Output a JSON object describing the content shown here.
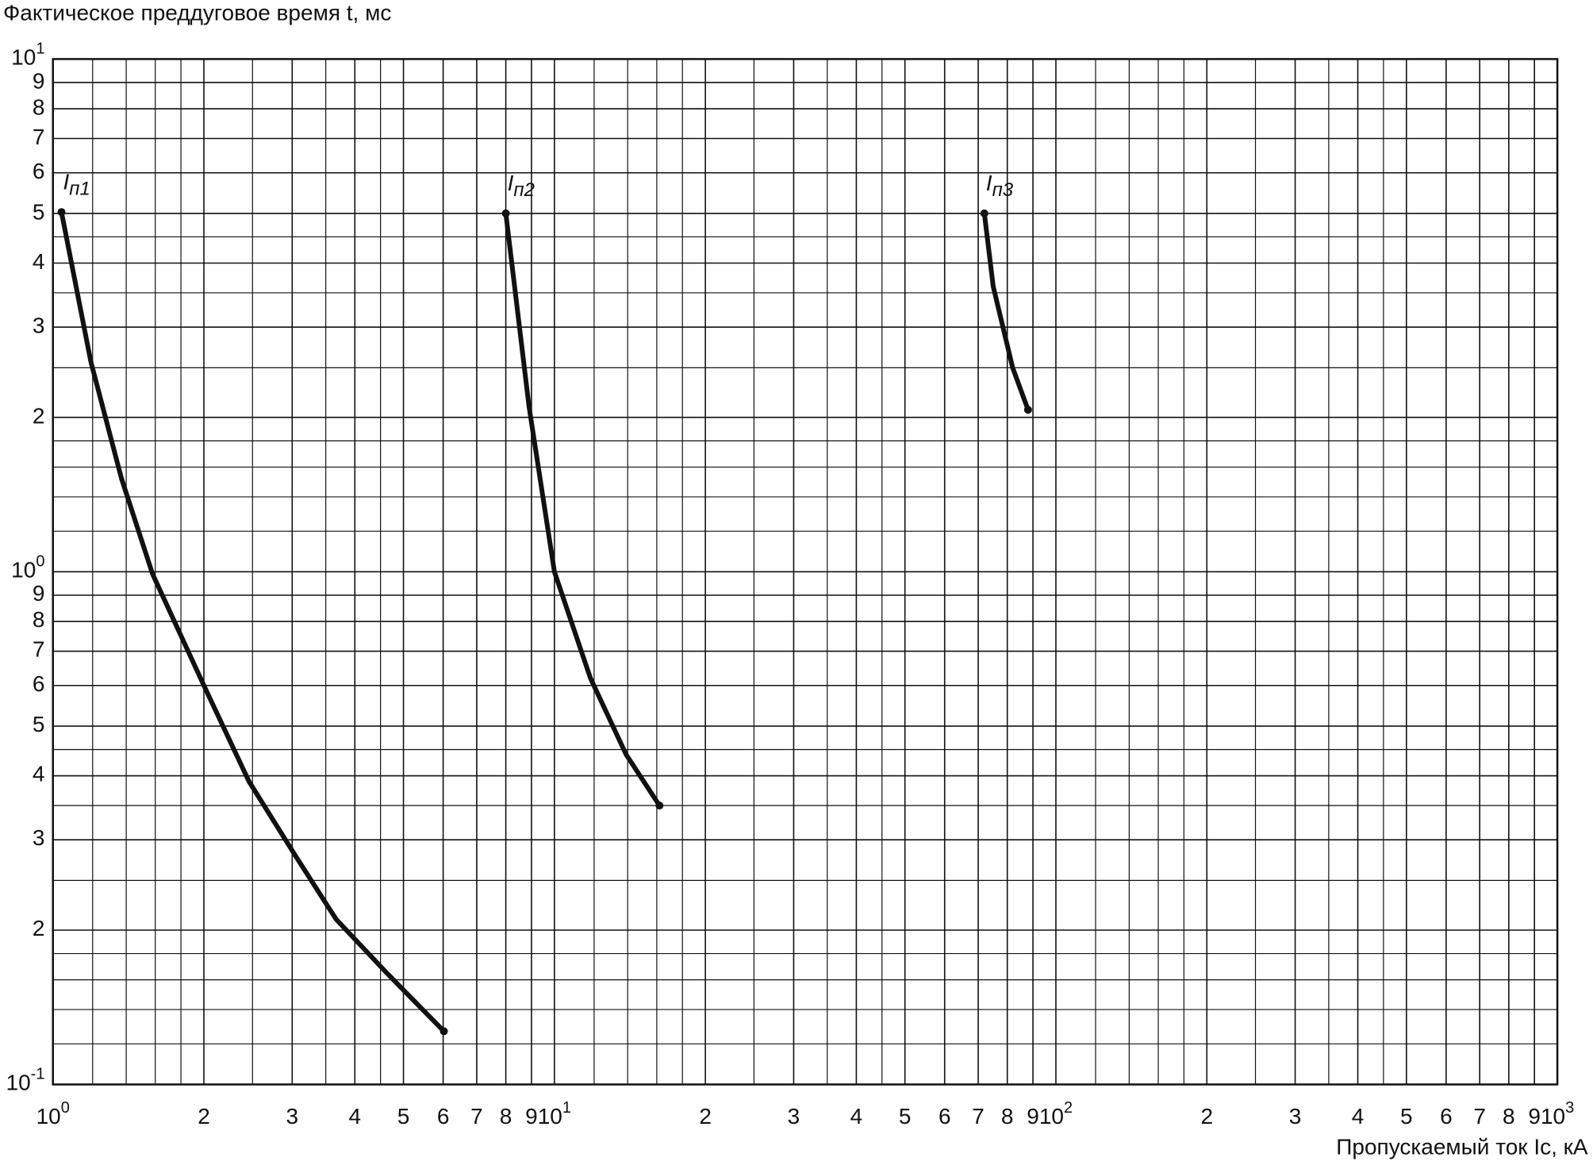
{
  "chart_data": {
    "type": "line",
    "y_label": "Фактическое преддуговое время t, мс",
    "x_label": "Пропускаемый ток Iс, кА",
    "log_x": true,
    "log_y": true,
    "grid": true,
    "xlim": [
      1,
      1000
    ],
    "ylim": [
      0.1,
      10
    ],
    "xticks": [
      {
        "value": 1,
        "label": "10",
        "sup": "0"
      },
      2,
      3,
      4,
      5,
      6,
      7,
      8,
      9,
      {
        "value": 10,
        "label": "10",
        "sup": "1"
      },
      {
        "value": 20,
        "label": "2"
      },
      {
        "value": 30,
        "label": "3"
      },
      {
        "value": 40,
        "label": "4"
      },
      {
        "value": 50,
        "label": "5"
      },
      {
        "value": 60,
        "label": "6"
      },
      {
        "value": 70,
        "label": "7"
      },
      {
        "value": 80,
        "label": "8"
      },
      {
        "value": 90,
        "label": "9"
      },
      {
        "value": 100,
        "label": "10",
        "sup": "2"
      },
      {
        "value": 200,
        "label": "2"
      },
      {
        "value": 300,
        "label": "3"
      },
      {
        "value": 400,
        "label": "4"
      },
      {
        "value": 500,
        "label": "5"
      },
      {
        "value": 600,
        "label": "6"
      },
      {
        "value": 700,
        "label": "7"
      },
      {
        "value": 800,
        "label": "8"
      },
      {
        "value": 900,
        "label": "9"
      },
      {
        "value": 1000,
        "label": "10",
        "sup": "3"
      }
    ],
    "yticks": [
      {
        "value": 0.1,
        "label": "10",
        "sup": "-1"
      },
      {
        "value": 0.2,
        "label": "2"
      },
      {
        "value": 0.3,
        "label": "3"
      },
      {
        "value": 0.4,
        "label": "4"
      },
      {
        "value": 0.5,
        "label": "5"
      },
      {
        "value": 0.6,
        "label": "6"
      },
      {
        "value": 0.7,
        "label": "7"
      },
      {
        "value": 0.8,
        "label": "8"
      },
      {
        "value": 0.9,
        "label": "9"
      },
      {
        "value": 1,
        "label": "10",
        "sup": "0"
      },
      2,
      3,
      4,
      5,
      6,
      7,
      8,
      9,
      {
        "value": 10,
        "label": "10",
        "sup": "1"
      }
    ],
    "minor_xticks": [
      1.2,
      1.4,
      1.6,
      1.8,
      2.5,
      3.5,
      4.5,
      12,
      14,
      16,
      18,
      25,
      35,
      45,
      120,
      140,
      160,
      180,
      250,
      350,
      450
    ],
    "minor_yticks": [
      0.12,
      0.14,
      0.16,
      0.18,
      0.25,
      0.35,
      0.45,
      1.2,
      1.4,
      1.6,
      1.8,
      2.5,
      3.5,
      4.5
    ],
    "series": [
      {
        "name": "Iп1",
        "color": "#111111",
        "x": [
          1.04,
          1.19,
          1.37,
          1.58,
          2.0,
          2.46,
          3.04,
          3.67,
          4.63,
          6.02
        ],
        "values": [
          5.03,
          2.57,
          1.52,
          0.99,
          0.6,
          0.39,
          0.28,
          0.21,
          0.165,
          0.127
        ]
      },
      {
        "name": "Iп2",
        "color": "#111111",
        "x": [
          8.0,
          8.9,
          10.0,
          11.8,
          13.9,
          16.2
        ],
        "values": [
          5.0,
          2.1,
          1.0,
          0.62,
          0.44,
          0.35
        ]
      },
      {
        "name": "Iп3",
        "color": "#111111",
        "x": [
          72,
          75,
          82,
          88
        ],
        "values": [
          5.0,
          3.6,
          2.5,
          2.07
        ]
      }
    ]
  }
}
